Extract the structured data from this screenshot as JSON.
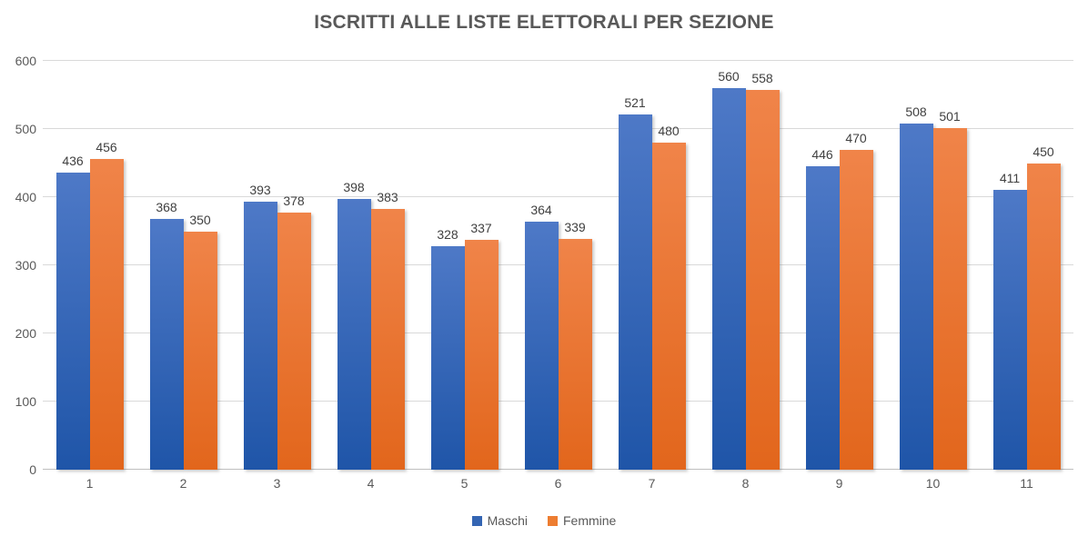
{
  "chart_data": {
    "type": "bar",
    "title": "ISCRITTI ALLE LISTE ELETTORALI PER SEZIONE",
    "categories": [
      "1",
      "2",
      "3",
      "4",
      "5",
      "6",
      "7",
      "8",
      "9",
      "10",
      "11"
    ],
    "series": [
      {
        "name": "Maschi",
        "values": [
          436,
          368,
          393,
          398,
          328,
          364,
          521,
          560,
          446,
          508,
          411
        ],
        "color_top": "#4e79c7",
        "color_bottom": "#1f55a8",
        "legend_color": "#3465b3"
      },
      {
        "name": "Femmine",
        "values": [
          456,
          350,
          378,
          383,
          337,
          339,
          480,
          558,
          470,
          501,
          450
        ],
        "color_top": "#f08449",
        "color_bottom": "#e2661c",
        "legend_color": "#ed7d31"
      }
    ],
    "xlabel": "",
    "ylabel": "",
    "ylim": [
      0,
      600
    ],
    "yticks": [
      0,
      100,
      200,
      300,
      400,
      500,
      600
    ],
    "grid": true,
    "legend_position": "bottom",
    "data_labels": true,
    "colors": {
      "grid": "#d9d9d9",
      "axis": "#bfbfbf",
      "title": "#595959",
      "tick_label": "#595959",
      "data_label": "#404040",
      "background": "#ffffff"
    }
  }
}
